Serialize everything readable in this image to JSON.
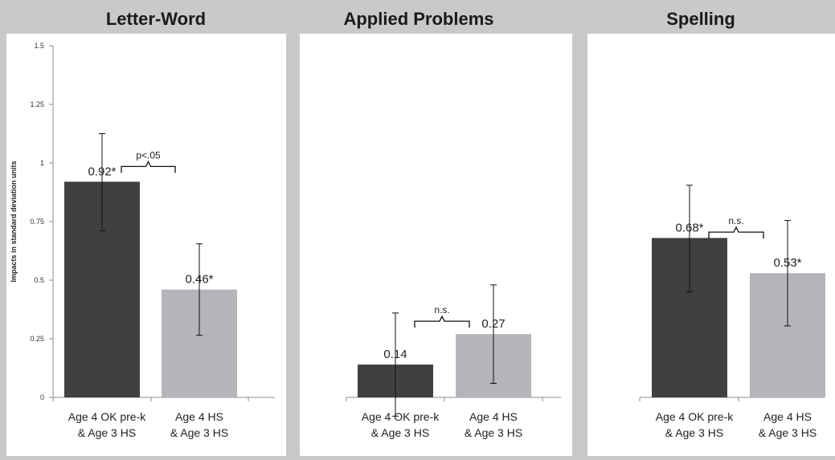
{
  "chart_data": {
    "type": "bar",
    "ylabel": "Impacts in standard deviation units",
    "ylim": [
      0,
      1.5
    ],
    "yticks": [
      "0",
      "0.25",
      "0.5",
      "0.75",
      "1",
      "1.25",
      "1.5"
    ],
    "ytick_values": [
      0,
      0.25,
      0.5,
      0.75,
      1,
      1.25,
      1.5
    ],
    "categories": [
      [
        "Age 4 OK pre-k",
        "& Age 3 HS"
      ],
      [
        "Age 4 HS",
        "& Age 3 HS"
      ]
    ],
    "colors": [
      "#404040",
      "#b3b5b8"
    ],
    "panels": [
      {
        "title": "Letter-Word",
        "values": [
          0.92,
          0.46
        ],
        "error_low": [
          0.71,
          0.265
        ],
        "error_high": [
          1.125,
          0.655
        ],
        "value_labels": [
          "0.92*",
          "0.46*"
        ],
        "bracket_label": "p<.05"
      },
      {
        "title": "Applied Problems",
        "values": [
          0.14,
          0.27
        ],
        "error_low": [
          -0.08,
          0.06
        ],
        "error_high": [
          0.36,
          0.48
        ],
        "value_labels": [
          "0.14",
          "0.27"
        ],
        "bracket_label": "n.s."
      },
      {
        "title": "Spelling",
        "values": [
          0.68,
          0.53
        ],
        "error_low": [
          0.45,
          0.305
        ],
        "error_high": [
          0.905,
          0.755
        ],
        "value_labels": [
          "0.68*",
          "0.53*"
        ],
        "bracket_label": "n.s."
      }
    ]
  }
}
